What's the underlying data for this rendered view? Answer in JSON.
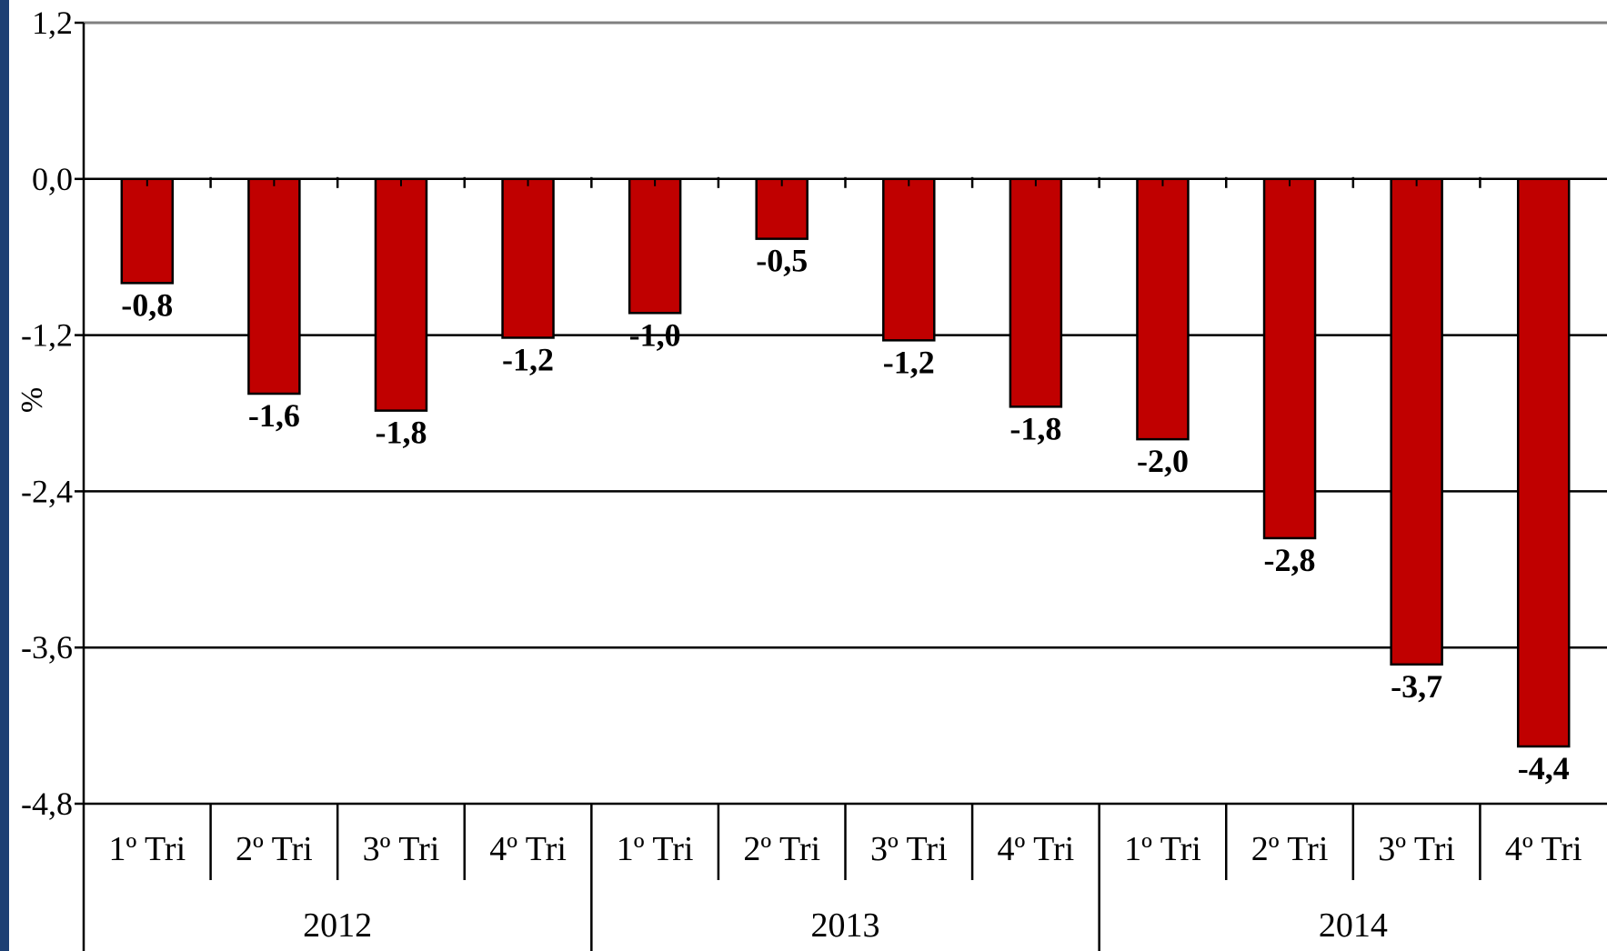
{
  "chart_data": {
    "type": "bar",
    "ylabel": "%",
    "ylim": [
      -4.8,
      1.2
    ],
    "yticks": [
      "1,2",
      "0,0",
      "-1,2",
      "-2,4",
      "-3,6",
      "-4,8"
    ],
    "ytick_values": [
      1.2,
      0.0,
      -1.2,
      -2.4,
      -3.6,
      -4.8
    ],
    "grid": true,
    "groups": [
      {
        "year": "2012",
        "categories": [
          "1º Tri",
          "2º Tri",
          "3º Tri",
          "4º Tri"
        ]
      },
      {
        "year": "2013",
        "categories": [
          "1º Tri",
          "2º Tri",
          "3º Tri",
          "4º Tri"
        ]
      },
      {
        "year": "2014",
        "categories": [
          "1º Tri",
          "2º Tri",
          "3º Tri",
          "4º Tri"
        ]
      }
    ],
    "values": [
      -0.8,
      -1.65,
      -1.78,
      -1.22,
      -1.03,
      -0.46,
      -1.24,
      -1.75,
      -2.0,
      -2.76,
      -3.73,
      -4.36
    ],
    "value_labels": [
      "-0,8",
      "-1,6",
      "-1,8",
      "-1,2",
      "-1,0",
      "-0,5",
      "-1,2",
      "-1,8",
      "-2,0",
      "-2,8",
      "-3,7",
      "-4,4"
    ],
    "colors": {
      "bar": "#c00000",
      "background_border": "#1d3f73"
    }
  }
}
